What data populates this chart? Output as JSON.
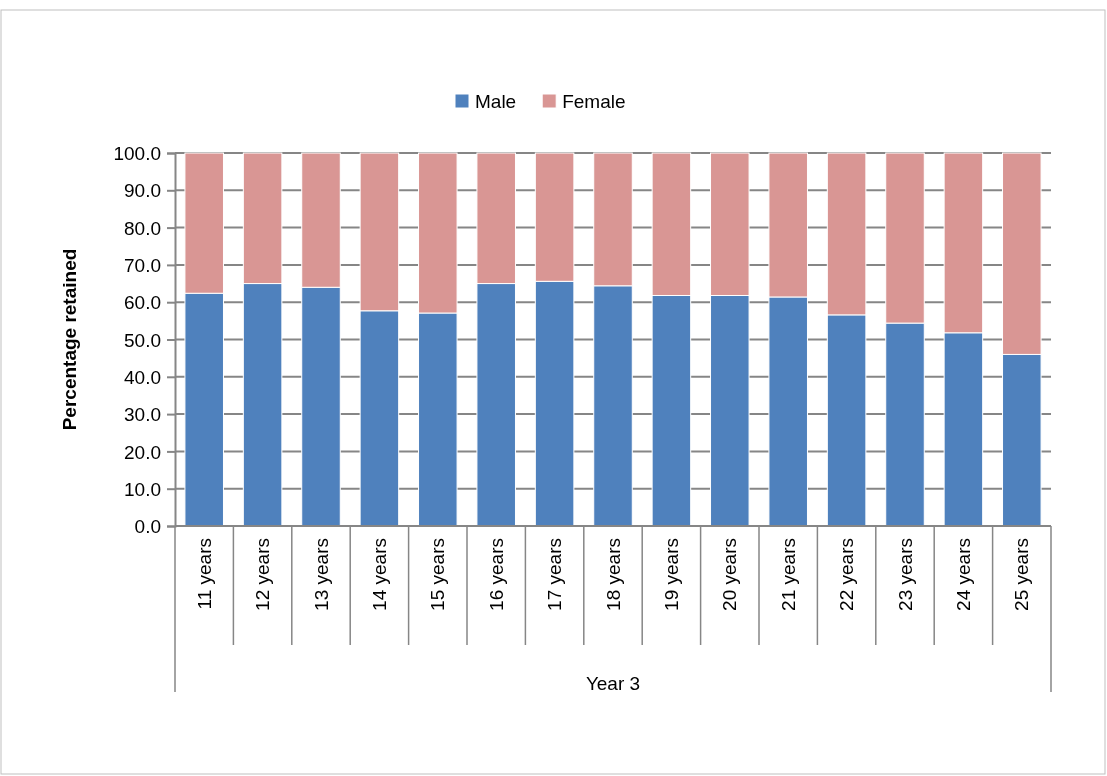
{
  "chart_data": {
    "type": "bar",
    "stacked": true,
    "xlabel": "Year 3",
    "ylabel": "Percentage retained",
    "categories": [
      "11 years",
      "12 years",
      "13 years",
      "14 years",
      "15 years",
      "16 years",
      "17 years",
      "18 years",
      "19 years",
      "20 years",
      "21 years",
      "22 years",
      "23 years",
      "24 years",
      "25 years"
    ],
    "series": [
      {
        "name": "Male",
        "color": "#4f81bd",
        "values": [
          62.4,
          65.0,
          64.0,
          57.7,
          57.1,
          65.0,
          65.6,
          64.4,
          61.8,
          61.8,
          61.4,
          56.6,
          54.4,
          51.8,
          46.0
        ]
      },
      {
        "name": "Female",
        "color": "#d99694",
        "values": [
          37.6,
          35.0,
          36.0,
          42.3,
          42.9,
          35.0,
          34.4,
          35.6,
          38.2,
          38.2,
          38.6,
          43.4,
          45.6,
          48.2,
          54.0
        ]
      }
    ],
    "ylim": [
      0,
      100
    ],
    "yticks": [
      {
        "value": 0,
        "label": "0.0"
      },
      {
        "value": 10,
        "label": "10.0"
      },
      {
        "value": 20,
        "label": "20.0"
      },
      {
        "value": 30,
        "label": "30.0"
      },
      {
        "value": 40,
        "label": "40.0"
      },
      {
        "value": 50,
        "label": "50.0"
      },
      {
        "value": 60,
        "label": "60.0"
      },
      {
        "value": 70,
        "label": "70.0"
      },
      {
        "value": 80,
        "label": "80.0"
      },
      {
        "value": 90,
        "label": "90.0"
      },
      {
        "value": 100,
        "label": "100.0"
      }
    ],
    "grid": "y",
    "legend": "top"
  }
}
